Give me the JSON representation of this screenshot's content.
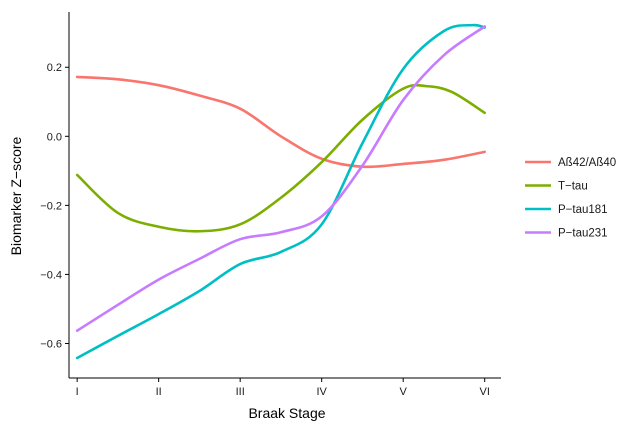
{
  "chart_data": {
    "type": "line",
    "title": "",
    "xlabel": "Braak Stage",
    "ylabel": "Biomarker Z−score",
    "categories": [
      "I",
      "II",
      "III",
      "IV",
      "V",
      "VI"
    ],
    "x": [
      1,
      2,
      3,
      4,
      5,
      6
    ],
    "xlim": [
      0.9,
      6.2
    ],
    "ylim": [
      -0.7,
      0.36
    ],
    "y_ticks": [
      -0.6,
      -0.4,
      -0.2,
      0.0,
      0.2
    ],
    "y_tick_labels": [
      "−0.6",
      "−0.4",
      "−0.2",
      "0.0",
      "0.2"
    ],
    "grid": false,
    "legend_position": "right",
    "series": [
      {
        "name": "Aß42/Aß40",
        "color": "#F8766D",
        "points": [
          [
            1,
            0.172
          ],
          [
            1.5,
            0.165
          ],
          [
            2,
            0.148
          ],
          [
            2.5,
            0.118
          ],
          [
            3,
            0.08
          ],
          [
            3.5,
            0.0
          ],
          [
            4,
            -0.065
          ],
          [
            4.5,
            -0.088
          ],
          [
            5,
            -0.08
          ],
          [
            5.5,
            -0.068
          ],
          [
            6,
            -0.045
          ]
        ]
      },
      {
        "name": "T−tau",
        "color": "#7CAE00",
        "points": [
          [
            1,
            -0.112
          ],
          [
            1.5,
            -0.222
          ],
          [
            2,
            -0.262
          ],
          [
            2.5,
            -0.275
          ],
          [
            3,
            -0.255
          ],
          [
            3.5,
            -0.178
          ],
          [
            4,
            -0.075
          ],
          [
            4.5,
            0.048
          ],
          [
            5,
            0.138
          ],
          [
            5.3,
            0.145
          ],
          [
            5.6,
            0.128
          ],
          [
            6,
            0.068
          ]
        ]
      },
      {
        "name": "P−tau181",
        "color": "#00BFC4",
        "points": [
          [
            1,
            -0.642
          ],
          [
            1.5,
            -0.578
          ],
          [
            2,
            -0.515
          ],
          [
            2.5,
            -0.448
          ],
          [
            3,
            -0.37
          ],
          [
            3.5,
            -0.335
          ],
          [
            4,
            -0.255
          ],
          [
            4.5,
            -0.02
          ],
          [
            5,
            0.195
          ],
          [
            5.5,
            0.305
          ],
          [
            5.85,
            0.322
          ],
          [
            6,
            0.315
          ]
        ]
      },
      {
        "name": "P−tau231",
        "color": "#C77CFF",
        "points": [
          [
            1,
            -0.563
          ],
          [
            1.5,
            -0.488
          ],
          [
            2,
            -0.415
          ],
          [
            2.5,
            -0.355
          ],
          [
            3,
            -0.298
          ],
          [
            3.5,
            -0.278
          ],
          [
            4,
            -0.232
          ],
          [
            4.5,
            -0.085
          ],
          [
            5,
            0.105
          ],
          [
            5.5,
            0.235
          ],
          [
            6,
            0.318
          ]
        ]
      }
    ]
  }
}
